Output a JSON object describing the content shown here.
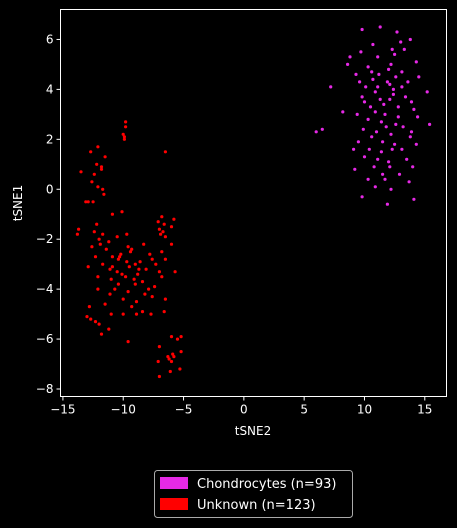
{
  "chart_data": {
    "type": "scatter",
    "xlabel": "tSNE2",
    "ylabel": "tSNE1",
    "xlim": [
      -15.2,
      16.8
    ],
    "ylim": [
      -8.3,
      7.2
    ],
    "xticks": [
      -15,
      -10,
      -5,
      0,
      5,
      10,
      15
    ],
    "yticks": [
      -8,
      -6,
      -4,
      -2,
      0,
      2,
      4,
      6
    ],
    "grid": false,
    "legend_placement": "bottom-center",
    "background": "#000000",
    "series": [
      {
        "name": "Chondrocytes (n=93)",
        "color": "#e629e6",
        "points": [
          [
            9.8,
            6.4
          ],
          [
            11.3,
            6.5
          ],
          [
            12.7,
            6.3
          ],
          [
            13.8,
            6.0
          ],
          [
            10.7,
            5.8
          ],
          [
            12.3,
            5.6
          ],
          [
            13.3,
            5.6
          ],
          [
            9.7,
            5.5
          ],
          [
            8.8,
            5.3
          ],
          [
            11.1,
            5.3
          ],
          [
            12.5,
            5.4
          ],
          [
            14.3,
            5.1
          ],
          [
            12.2,
            5.0
          ],
          [
            10.3,
            4.9
          ],
          [
            12.0,
            4.8
          ],
          [
            13.1,
            4.7
          ],
          [
            9.3,
            4.6
          ],
          [
            11.2,
            4.6
          ],
          [
            12.6,
            4.5
          ],
          [
            14.5,
            4.5
          ],
          [
            9.6,
            4.3
          ],
          [
            10.7,
            4.4
          ],
          [
            11.9,
            4.3
          ],
          [
            13.6,
            4.3
          ],
          [
            7.2,
            4.1
          ],
          [
            10.1,
            4.1
          ],
          [
            11.1,
            4.1
          ],
          [
            12.1,
            4.2
          ],
          [
            13.1,
            4.1
          ],
          [
            10.9,
            3.9
          ],
          [
            12.4,
            3.8
          ],
          [
            15.2,
            3.9
          ],
          [
            9.8,
            3.7
          ],
          [
            11.3,
            3.6
          ],
          [
            12.1,
            3.6
          ],
          [
            13.9,
            3.5
          ],
          [
            10.0,
            3.5
          ],
          [
            11.6,
            3.4
          ],
          [
            12.8,
            3.3
          ],
          [
            14.1,
            3.2
          ],
          [
            8.2,
            3.1
          ],
          [
            9.4,
            3.0
          ],
          [
            10.9,
            3.1
          ],
          [
            11.7,
            3.0
          ],
          [
            12.8,
            2.9
          ],
          [
            14.4,
            2.9
          ],
          [
            10.3,
            2.8
          ],
          [
            11.4,
            2.7
          ],
          [
            12.6,
            2.6
          ],
          [
            13.2,
            2.5
          ],
          [
            15.4,
            2.6
          ],
          [
            9.9,
            2.4
          ],
          [
            11.0,
            2.3
          ],
          [
            12.2,
            2.2
          ],
          [
            13.8,
            2.1
          ],
          [
            10.6,
            2.1
          ],
          [
            11.5,
            1.9
          ],
          [
            12.5,
            1.8
          ],
          [
            14.3,
            1.8
          ],
          [
            9.1,
            1.6
          ],
          [
            10.4,
            1.6
          ],
          [
            11.4,
            1.5
          ],
          [
            12.3,
            1.6
          ],
          [
            13.1,
            1.6
          ],
          [
            10.0,
            1.3
          ],
          [
            11.1,
            1.2
          ],
          [
            13.5,
            1.2
          ],
          [
            10.8,
            0.9
          ],
          [
            12.1,
            0.9
          ],
          [
            14.0,
            0.9
          ],
          [
            9.2,
            0.8
          ],
          [
            11.5,
            0.6
          ],
          [
            12.9,
            0.6
          ],
          [
            10.3,
            0.4
          ],
          [
            11.7,
            0.4
          ],
          [
            13.7,
            0.3
          ],
          [
            10.9,
            0.1
          ],
          [
            12.2,
            0.0
          ],
          [
            9.8,
            -0.3
          ],
          [
            14.1,
            -0.4
          ],
          [
            11.9,
            -0.6
          ],
          [
            6.0,
            2.3
          ],
          [
            6.5,
            2.4
          ],
          [
            8.6,
            5.0
          ],
          [
            13.0,
            5.9
          ],
          [
            12.4,
            4.0
          ],
          [
            10.5,
            3.3
          ],
          [
            11.8,
            2.5
          ],
          [
            13.4,
            3.7
          ],
          [
            9.5,
            1.9
          ],
          [
            12.0,
            1.1
          ],
          [
            10.6,
            4.7
          ],
          [
            13.9,
            2.3
          ]
        ]
      },
      {
        "name": "Unknown (n=123)",
        "color": "#ff0000",
        "points": [
          [
            -9.8,
            2.7
          ],
          [
            -9.8,
            2.5
          ],
          [
            -9.9,
            2.1
          ],
          [
            -10.0,
            2.2
          ],
          [
            -9.9,
            2.0
          ],
          [
            -6.5,
            1.5
          ],
          [
            -12.1,
            1.7
          ],
          [
            -12.7,
            1.5
          ],
          [
            -11.5,
            1.3
          ],
          [
            -12.2,
            1.0
          ],
          [
            -11.8,
            0.8
          ],
          [
            -13.5,
            0.7
          ],
          [
            -11.8,
            0.9
          ],
          [
            -12.4,
            0.6
          ],
          [
            -12.6,
            0.3
          ],
          [
            -12.1,
            0.1
          ],
          [
            -11.7,
            0.0
          ],
          [
            -11.6,
            -0.2
          ],
          [
            -13.1,
            -0.5
          ],
          [
            -12.9,
            -0.5
          ],
          [
            -12.5,
            -0.5
          ],
          [
            -10.9,
            -1.0
          ],
          [
            -10.1,
            -0.9
          ],
          [
            -6.8,
            -1.1
          ],
          [
            -5.8,
            -1.2
          ],
          [
            -7.1,
            -1.3
          ],
          [
            -6.6,
            -1.4
          ],
          [
            -12.2,
            -1.4
          ],
          [
            -6.0,
            -1.5
          ],
          [
            -13.7,
            -1.6
          ],
          [
            -7.0,
            -1.6
          ],
          [
            -6.7,
            -1.7
          ],
          [
            -11.7,
            -1.8
          ],
          [
            -13.8,
            -1.8
          ],
          [
            -10.5,
            -1.9
          ],
          [
            -9.7,
            -1.8
          ],
          [
            -12.0,
            -2.0
          ],
          [
            -6.5,
            -1.9
          ],
          [
            -11.2,
            -2.1
          ],
          [
            -8.3,
            -2.2
          ],
          [
            -6.0,
            -2.2
          ],
          [
            -9.6,
            -2.3
          ],
          [
            -11.4,
            -2.4
          ],
          [
            -12.6,
            -2.3
          ],
          [
            -9.3,
            -2.4
          ],
          [
            -9.4,
            -2.5
          ],
          [
            -6.8,
            -2.5
          ],
          [
            -10.2,
            -2.6
          ],
          [
            -7.8,
            -2.6
          ],
          [
            -12.3,
            -2.7
          ],
          [
            -10.9,
            -2.7
          ],
          [
            -10.4,
            -2.8
          ],
          [
            -9.7,
            -2.9
          ],
          [
            -7.6,
            -2.8
          ],
          [
            -6.5,
            -2.8
          ],
          [
            -11.7,
            -3.0
          ],
          [
            -9.0,
            -3.0
          ],
          [
            -7.3,
            -3.0
          ],
          [
            -9.5,
            -3.1
          ],
          [
            -12.9,
            -3.1
          ],
          [
            -11.1,
            -3.2
          ],
          [
            -8.7,
            -3.2
          ],
          [
            -10.5,
            -3.3
          ],
          [
            -8.1,
            -3.2
          ],
          [
            -7.0,
            -3.3
          ],
          [
            -5.7,
            -3.3
          ],
          [
            -8.8,
            -3.4
          ],
          [
            -10.1,
            -3.4
          ],
          [
            -9.8,
            -3.5
          ],
          [
            -12.1,
            -3.5
          ],
          [
            -6.8,
            -3.5
          ],
          [
            -11.0,
            -3.6
          ],
          [
            -8.4,
            -3.7
          ],
          [
            -9.0,
            -3.8
          ],
          [
            -10.4,
            -3.8
          ],
          [
            -7.4,
            -3.9
          ],
          [
            -10.7,
            -4.0
          ],
          [
            -12.1,
            -4.0
          ],
          [
            -9.6,
            -4.1
          ],
          [
            -8.2,
            -4.2
          ],
          [
            -11.1,
            -4.2
          ],
          [
            -7.6,
            -4.3
          ],
          [
            -10.0,
            -4.4
          ],
          [
            -6.5,
            -4.4
          ],
          [
            -8.9,
            -4.5
          ],
          [
            -11.5,
            -4.6
          ],
          [
            -9.3,
            -4.7
          ],
          [
            -12.8,
            -4.7
          ],
          [
            -8.4,
            -4.9
          ],
          [
            -10.0,
            -5.0
          ],
          [
            -8.9,
            -5.0
          ],
          [
            -7.7,
            -5.0
          ],
          [
            -11.0,
            -5.0
          ],
          [
            -13.0,
            -5.1
          ],
          [
            -12.7,
            -5.2
          ],
          [
            -12.3,
            -5.3
          ],
          [
            -12.0,
            -5.4
          ],
          [
            -11.2,
            -5.6
          ],
          [
            -11.8,
            -5.8
          ],
          [
            -6.0,
            -5.9
          ],
          [
            -5.2,
            -5.9
          ],
          [
            -9.6,
            -6.1
          ],
          [
            -5.5,
            -6.0
          ],
          [
            -7.0,
            -6.3
          ],
          [
            -5.2,
            -6.5
          ],
          [
            -5.9,
            -6.6
          ],
          [
            -6.3,
            -6.7
          ],
          [
            -6.0,
            -6.9
          ],
          [
            -7.1,
            -6.9
          ],
          [
            -5.8,
            -6.7
          ],
          [
            -6.2,
            -6.8
          ],
          [
            -5.3,
            -7.2
          ],
          [
            -6.1,
            -7.3
          ],
          [
            -7.0,
            -7.5
          ],
          [
            -10.3,
            -2.7
          ],
          [
            -8.6,
            -2.9
          ],
          [
            -11.9,
            -2.2
          ],
          [
            -6.9,
            -1.8
          ],
          [
            -9.1,
            -3.6
          ],
          [
            -10.9,
            -3.1
          ],
          [
            -7.9,
            -4.0
          ],
          [
            -12.4,
            -1.7
          ],
          [
            -6.6,
            -4.9
          ]
        ]
      }
    ]
  }
}
